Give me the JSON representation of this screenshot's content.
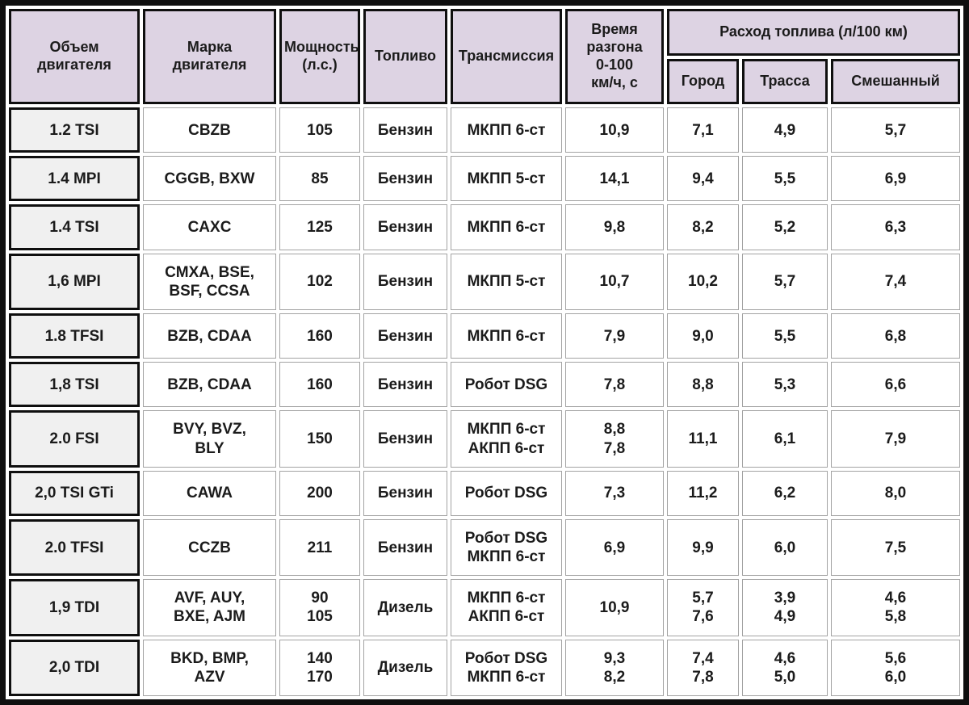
{
  "chart_data": {
    "type": "table",
    "title": "",
    "header": {
      "volume": "Объем\nдвигателя",
      "brand": "Марка\nдвигателя",
      "power": "Мощность\n(л.с.)",
      "fuel": "Топливо",
      "transmission": "Трансмиссия",
      "accel": "Время\nразгона\n0-100\nкм/ч, с",
      "consumption_group": "Расход топлива (л/100 км)",
      "city": "Город",
      "highway": "Трасса",
      "mixed": "Смешанный"
    },
    "rows": [
      {
        "volume": "1.2 TSI",
        "brand": "CBZB",
        "power": "105",
        "fuel": "Бензин",
        "transmission": "МКПП 6-ст",
        "accel": "10,9",
        "city": "7,1",
        "highway": "4,9",
        "mixed": "5,7"
      },
      {
        "volume": "1.4 MPI",
        "brand": "CGGB, BXW",
        "power": "85",
        "fuel": "Бензин",
        "transmission": "МКПП 5-ст",
        "accel": "14,1",
        "city": "9,4",
        "highway": "5,5",
        "mixed": "6,9"
      },
      {
        "volume": "1.4 TSI",
        "brand": "CAXC",
        "power": "125",
        "fuel": "Бензин",
        "transmission": "МКПП 6-ст",
        "accel": "9,8",
        "city": "8,2",
        "highway": "5,2",
        "mixed": "6,3"
      },
      {
        "volume": "1,6 MPI",
        "brand": "CMXA, BSE,\nBSF, CCSA",
        "power": "102",
        "fuel": "Бензин",
        "transmission": "МКПП 5-ст",
        "accel": "10,7",
        "city": "10,2",
        "highway": "5,7",
        "mixed": "7,4"
      },
      {
        "volume": "1.8 TFSI",
        "brand": "BZB, CDAA",
        "power": "160",
        "fuel": "Бензин",
        "transmission": "МКПП 6-ст",
        "accel": "7,9",
        "city": "9,0",
        "highway": "5,5",
        "mixed": "6,8"
      },
      {
        "volume": "1,8 TSI",
        "brand": "BZB, CDAA",
        "power": "160",
        "fuel": "Бензин",
        "transmission": "Робот DSG",
        "accel": "7,8",
        "city": "8,8",
        "highway": "5,3",
        "mixed": "6,6"
      },
      {
        "volume": "2.0 FSI",
        "brand": "BVY, BVZ,\nBLY",
        "power": "150",
        "fuel": "Бензин",
        "transmission": "МКПП 6-ст\nАКПП 6-ст",
        "accel": "8,8\n7,8",
        "city": "11,1",
        "highway": "6,1",
        "mixed": "7,9"
      },
      {
        "volume": "2,0 TSI GTi",
        "brand": "CAWA",
        "power": "200",
        "fuel": "Бензин",
        "transmission": "Робот DSG",
        "accel": "7,3",
        "city": "11,2",
        "highway": "6,2",
        "mixed": "8,0"
      },
      {
        "volume": "2.0 TFSI",
        "brand": "CCZB",
        "power": "211",
        "fuel": "Бензин",
        "transmission": "Робот DSG\nМКПП 6-ст",
        "accel": "6,9",
        "city": "9,9",
        "highway": "6,0",
        "mixed": "7,5"
      },
      {
        "volume": "1,9 TDI",
        "brand": "AVF, AUY,\nBXE, AJM",
        "power": "90\n105",
        "fuel": "Дизель",
        "transmission": "МКПП 6-ст\nАКПП 6-ст",
        "accel": "10,9",
        "city": "5,7\n7,6",
        "highway": "3,9\n4,9",
        "mixed": "4,6\n5,8"
      },
      {
        "volume": "2,0 TDI",
        "brand": "BKD, BMP,\nAZV",
        "power": "140\n170",
        "fuel": "Дизель",
        "transmission": "Робот DSG\nМКПП 6-ст",
        "accel": "9,3\n8,2",
        "city": "7,4\n7,8",
        "highway": "4,6\n5,0",
        "mixed": "5,6\n6,0"
      }
    ],
    "colors": {
      "header_bg": "#ddd3e3",
      "row_label_bg": "#f0f0f0",
      "frame_border": "#0f0f0f",
      "cell_border": "#a3a3a3"
    }
  }
}
